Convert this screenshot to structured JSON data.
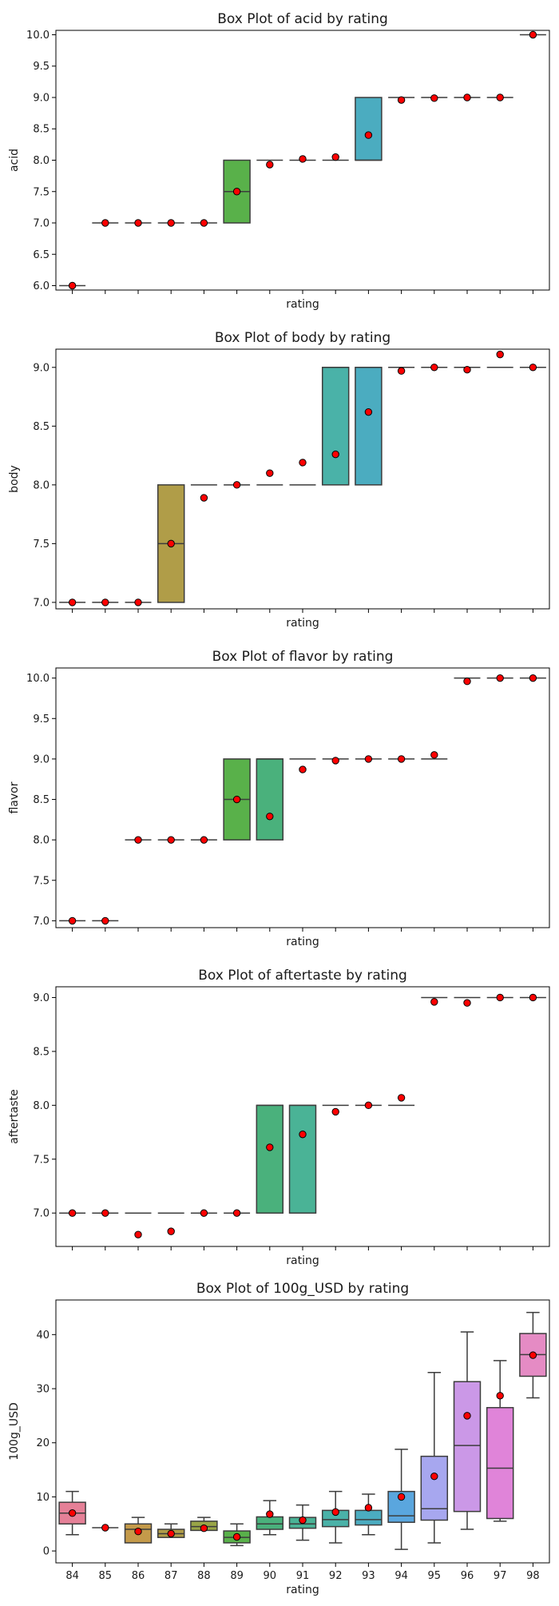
{
  "chart_data": [
    {
      "type": "box",
      "title": "Box Plot of acid by rating",
      "xlabel": "rating",
      "ylabel": "acid",
      "categories": [
        "84",
        "85",
        "86",
        "87",
        "88",
        "89",
        "90",
        "91",
        "92",
        "93",
        "94",
        "95",
        "96",
        "97",
        "98"
      ],
      "show_xtick_labels": false,
      "ylim": [
        5.93,
        10.07
      ],
      "yticks": [
        6.0,
        6.5,
        7.0,
        7.5,
        8.0,
        8.5,
        9.0,
        9.5,
        10.0
      ],
      "boxes": [
        {
          "q1": 6,
          "median": 6,
          "q3": 6,
          "whislo": 6,
          "whishi": 6,
          "mean": 6.0
        },
        {
          "q1": 7,
          "median": 7,
          "q3": 7,
          "whislo": 7,
          "whishi": 7,
          "mean": 7.0
        },
        {
          "q1": 7,
          "median": 7,
          "q3": 7,
          "whislo": 7,
          "whishi": 7,
          "mean": 7.0
        },
        {
          "q1": 7,
          "median": 7,
          "q3": 7,
          "whislo": 7,
          "whishi": 7,
          "mean": 7.0
        },
        {
          "q1": 7,
          "median": 7,
          "q3": 7,
          "whislo": 7,
          "whishi": 7,
          "mean": 7.0
        },
        {
          "q1": 7,
          "median": 7.5,
          "q3": 8,
          "whislo": 7,
          "whishi": 8,
          "mean": 7.5
        },
        {
          "q1": 8,
          "median": 8,
          "q3": 8,
          "whislo": 8,
          "whishi": 8,
          "mean": 7.93
        },
        {
          "q1": 8,
          "median": 8,
          "q3": 8,
          "whislo": 8,
          "whishi": 8,
          "mean": 8.02
        },
        {
          "q1": 8,
          "median": 8,
          "q3": 8,
          "whislo": 8,
          "whishi": 8,
          "mean": 8.05
        },
        {
          "q1": 8,
          "median": 8,
          "q3": 9,
          "whislo": 8,
          "whishi": 9,
          "mean": 8.4
        },
        {
          "q1": 9,
          "median": 9,
          "q3": 9,
          "whislo": 9,
          "whishi": 9,
          "mean": 8.96
        },
        {
          "q1": 9,
          "median": 9,
          "q3": 9,
          "whislo": 9,
          "whishi": 9,
          "mean": 8.99
        },
        {
          "q1": 9,
          "median": 9,
          "q3": 9,
          "whislo": 9,
          "whishi": 9,
          "mean": 9.0
        },
        {
          "q1": 9,
          "median": 9,
          "q3": 9,
          "whislo": 9,
          "whishi": 9,
          "mean": 9.0
        },
        {
          "q1": 10,
          "median": 10,
          "q3": 10,
          "whislo": 10,
          "whishi": 10,
          "mean": 10.0
        }
      ]
    },
    {
      "type": "box",
      "title": "Box Plot of body by rating",
      "xlabel": "rating",
      "ylabel": "body",
      "categories": [
        "84",
        "85",
        "86",
        "87",
        "88",
        "89",
        "90",
        "91",
        "92",
        "93",
        "94",
        "95",
        "96",
        "97",
        "98"
      ],
      "show_xtick_labels": false,
      "ylim": [
        6.945,
        9.155
      ],
      "yticks": [
        7.0,
        7.5,
        8.0,
        8.5,
        9.0
      ],
      "boxes": [
        {
          "q1": 7,
          "median": 7,
          "q3": 7,
          "whislo": 7,
          "whishi": 7,
          "mean": 7.0
        },
        {
          "q1": 7,
          "median": 7,
          "q3": 7,
          "whislo": 7,
          "whishi": 7,
          "mean": 7.0
        },
        {
          "q1": 7,
          "median": 7,
          "q3": 7,
          "whislo": 7,
          "whishi": 7,
          "mean": 7.0
        },
        {
          "q1": 7,
          "median": 7.5,
          "q3": 8,
          "whislo": 7,
          "whishi": 8,
          "mean": 7.5
        },
        {
          "q1": 8,
          "median": 8,
          "q3": 8,
          "whislo": 8,
          "whishi": 8,
          "mean": 7.89
        },
        {
          "q1": 8,
          "median": 8,
          "q3": 8,
          "whislo": 8,
          "whishi": 8,
          "mean": 8.0
        },
        {
          "q1": 8,
          "median": 8,
          "q3": 8,
          "whislo": 8,
          "whishi": 8,
          "mean": 8.1
        },
        {
          "q1": 8,
          "median": 8,
          "q3": 8,
          "whislo": 8,
          "whishi": 8,
          "mean": 8.19
        },
        {
          "q1": 8,
          "median": 9,
          "q3": 9,
          "whislo": 8,
          "whishi": 9,
          "mean": 8.26
        },
        {
          "q1": 8,
          "median": 9,
          "q3": 9,
          "whislo": 8,
          "whishi": 9,
          "mean": 8.62
        },
        {
          "q1": 9,
          "median": 9,
          "q3": 9,
          "whislo": 9,
          "whishi": 9,
          "mean": 8.97
        },
        {
          "q1": 9,
          "median": 9,
          "q3": 9,
          "whislo": 9,
          "whishi": 9,
          "mean": 9.0
        },
        {
          "q1": 9,
          "median": 9,
          "q3": 9,
          "whislo": 9,
          "whishi": 9,
          "mean": 8.98
        },
        {
          "q1": 9,
          "median": 9,
          "q3": 9,
          "whislo": 9,
          "whishi": 9,
          "mean": 9.11
        },
        {
          "q1": 9,
          "median": 9,
          "q3": 9,
          "whislo": 9,
          "whishi": 9,
          "mean": 9.0
        }
      ]
    },
    {
      "type": "box",
      "title": "Box Plot of flavor by rating",
      "xlabel": "rating",
      "ylabel": "flavor",
      "categories": [
        "84",
        "85",
        "86",
        "87",
        "88",
        "89",
        "90",
        "91",
        "92",
        "93",
        "94",
        "95",
        "96",
        "97",
        "98"
      ],
      "show_xtick_labels": false,
      "ylim": [
        6.915,
        10.125
      ],
      "yticks": [
        7.0,
        7.5,
        8.0,
        8.5,
        9.0,
        9.5,
        10.0
      ],
      "boxes": [
        {
          "q1": 7,
          "median": 7,
          "q3": 7,
          "whislo": 7,
          "whishi": 7,
          "mean": 7.0
        },
        {
          "q1": 7,
          "median": 7,
          "q3": 7,
          "whislo": 7,
          "whishi": 7,
          "mean": 7.0
        },
        {
          "q1": 8,
          "median": 8,
          "q3": 8,
          "whislo": 8,
          "whishi": 8,
          "mean": 8.0
        },
        {
          "q1": 8,
          "median": 8,
          "q3": 8,
          "whislo": 8,
          "whishi": 8,
          "mean": 8.0
        },
        {
          "q1": 8,
          "median": 8,
          "q3": 8,
          "whislo": 8,
          "whishi": 8,
          "mean": 8.0
        },
        {
          "q1": 8,
          "median": 8.5,
          "q3": 9,
          "whislo": 8,
          "whishi": 9,
          "mean": 8.5
        },
        {
          "q1": 8,
          "median": 9,
          "q3": 9,
          "whislo": 8,
          "whishi": 9,
          "mean": 8.29
        },
        {
          "q1": 9,
          "median": 9,
          "q3": 9,
          "whislo": 9,
          "whishi": 9,
          "mean": 8.87
        },
        {
          "q1": 9,
          "median": 9,
          "q3": 9,
          "whislo": 9,
          "whishi": 9,
          "mean": 8.98
        },
        {
          "q1": 9,
          "median": 9,
          "q3": 9,
          "whislo": 9,
          "whishi": 9,
          "mean": 9.0
        },
        {
          "q1": 9,
          "median": 9,
          "q3": 9,
          "whislo": 9,
          "whishi": 9,
          "mean": 9.0
        },
        {
          "q1": 9,
          "median": 9,
          "q3": 9,
          "whislo": 9,
          "whishi": 9,
          "mean": 9.05
        },
        {
          "q1": 10,
          "median": 10,
          "q3": 10,
          "whislo": 10,
          "whishi": 10,
          "mean": 9.96
        },
        {
          "q1": 10,
          "median": 10,
          "q3": 10,
          "whislo": 10,
          "whishi": 10,
          "mean": 10.0
        },
        {
          "q1": 10,
          "median": 10,
          "q3": 10,
          "whislo": 10,
          "whishi": 10,
          "mean": 10.0
        }
      ]
    },
    {
      "type": "box",
      "title": "Box Plot of aftertaste by rating",
      "xlabel": "rating",
      "ylabel": "aftertaste",
      "categories": [
        "84",
        "85",
        "86",
        "87",
        "88",
        "89",
        "90",
        "91",
        "92",
        "93",
        "94",
        "95",
        "96",
        "97",
        "98"
      ],
      "show_xtick_labels": false,
      "ylim": [
        6.69,
        9.1
      ],
      "yticks": [
        7.0,
        7.5,
        8.0,
        8.5,
        9.0
      ],
      "boxes": [
        {
          "q1": 7,
          "median": 7,
          "q3": 7,
          "whislo": 7,
          "whishi": 7,
          "mean": 7.0
        },
        {
          "q1": 7,
          "median": 7,
          "q3": 7,
          "whislo": 7,
          "whishi": 7,
          "mean": 7.0
        },
        {
          "q1": 7,
          "median": 7,
          "q3": 7,
          "whislo": 7,
          "whishi": 7,
          "mean": 6.8
        },
        {
          "q1": 7,
          "median": 7,
          "q3": 7,
          "whislo": 7,
          "whishi": 7,
          "mean": 6.83
        },
        {
          "q1": 7,
          "median": 7,
          "q3": 7,
          "whislo": 7,
          "whishi": 7,
          "mean": 7.0
        },
        {
          "q1": 7,
          "median": 7,
          "q3": 7,
          "whislo": 7,
          "whishi": 7,
          "mean": 7.0
        },
        {
          "q1": 7,
          "median": 8,
          "q3": 8,
          "whislo": 7,
          "whishi": 8,
          "mean": 7.61
        },
        {
          "q1": 7,
          "median": 8,
          "q3": 8,
          "whislo": 7,
          "whishi": 8,
          "mean": 7.73
        },
        {
          "q1": 8,
          "median": 8,
          "q3": 8,
          "whislo": 8,
          "whishi": 8,
          "mean": 7.94
        },
        {
          "q1": 8,
          "median": 8,
          "q3": 8,
          "whislo": 8,
          "whishi": 8,
          "mean": 8.0
        },
        {
          "q1": 8,
          "median": 8,
          "q3": 8,
          "whislo": 8,
          "whishi": 8,
          "mean": 8.07
        },
        {
          "q1": 9,
          "median": 9,
          "q3": 9,
          "whislo": 9,
          "whishi": 9,
          "mean": 8.96
        },
        {
          "q1": 9,
          "median": 9,
          "q3": 9,
          "whislo": 9,
          "whishi": 9,
          "mean": 8.95
        },
        {
          "q1": 9,
          "median": 9,
          "q3": 9,
          "whislo": 9,
          "whishi": 9,
          "mean": 9.0
        },
        {
          "q1": 9,
          "median": 9,
          "q3": 9,
          "whislo": 9,
          "whishi": 9,
          "mean": 9.0
        }
      ]
    },
    {
      "type": "box",
      "title": "Box Plot of 100g_USD by rating",
      "xlabel": "rating",
      "ylabel": "100g_USD",
      "categories": [
        "84",
        "85",
        "86",
        "87",
        "88",
        "89",
        "90",
        "91",
        "92",
        "93",
        "94",
        "95",
        "96",
        "97",
        "98"
      ],
      "show_xtick_labels": true,
      "ylim": [
        -2.2,
        46.4
      ],
      "yticks": [
        0,
        10,
        20,
        30,
        40
      ],
      "boxes": [
        {
          "q1": 5,
          "median": 7,
          "q3": 9,
          "whislo": 3,
          "whishi": 11,
          "mean": 7.0
        },
        {
          "q1": 4.3,
          "median": 4.3,
          "q3": 4.3,
          "whislo": 4.3,
          "whishi": 4.3,
          "mean": 4.3
        },
        {
          "q1": 1.5,
          "median": 4,
          "q3": 5,
          "whislo": 1.5,
          "whishi": 6.2,
          "mean": 3.6
        },
        {
          "q1": 2.5,
          "median": 3.2,
          "q3": 4,
          "whislo": 2.5,
          "whishi": 5,
          "mean": 3.2
        },
        {
          "q1": 3.8,
          "median": 4.5,
          "q3": 5.5,
          "whislo": 3.8,
          "whishi": 6.2,
          "mean": 4.2
        },
        {
          "q1": 1.5,
          "median": 2.5,
          "q3": 3.7,
          "whislo": 1,
          "whishi": 5,
          "mean": 2.6
        },
        {
          "q1": 4,
          "median": 5,
          "q3": 6.3,
          "whislo": 3,
          "whishi": 9.3,
          "mean": 6.8
        },
        {
          "q1": 4.2,
          "median": 5,
          "q3": 6.2,
          "whislo": 2,
          "whishi": 8.5,
          "mean": 5.7
        },
        {
          "q1": 4.5,
          "median": 5.8,
          "q3": 7.5,
          "whislo": 1.5,
          "whishi": 11,
          "mean": 7.2
        },
        {
          "q1": 4.8,
          "median": 5.8,
          "q3": 7.5,
          "whislo": 3,
          "whishi": 10.5,
          "mean": 8.0
        },
        {
          "q1": 5.3,
          "median": 6.5,
          "q3": 11,
          "whislo": 0.3,
          "whishi": 18.8,
          "mean": 10.0
        },
        {
          "q1": 5.7,
          "median": 7.8,
          "q3": 17.5,
          "whislo": 1.5,
          "whishi": 33,
          "mean": 13.8
        },
        {
          "q1": 7.3,
          "median": 19.5,
          "q3": 31.3,
          "whislo": 4,
          "whishi": 40.5,
          "mean": 25.0
        },
        {
          "q1": 6,
          "median": 15.3,
          "q3": 26.5,
          "whislo": 5.5,
          "whishi": 35.2,
          "mean": 28.7
        },
        {
          "q1": 32.3,
          "median": 36.3,
          "q3": 40.2,
          "whislo": 28.3,
          "whishi": 44.1,
          "mean": 36.2
        }
      ]
    }
  ],
  "colors": {
    "boxes": [
      "#e58097",
      "#da8a5a",
      "#c49a4a",
      "#b09d48",
      "#99a547",
      "#59b14a",
      "#4ab17c",
      "#4ab396",
      "#4ab2a8",
      "#4bacc0",
      "#5aa6de",
      "#a7a7ef",
      "#cb98e7",
      "#e084d9",
      "#e58bc4"
    ],
    "edge": "#3c3c3c",
    "mean_fill": "#ff0000",
    "mean_edge": "#000000"
  }
}
